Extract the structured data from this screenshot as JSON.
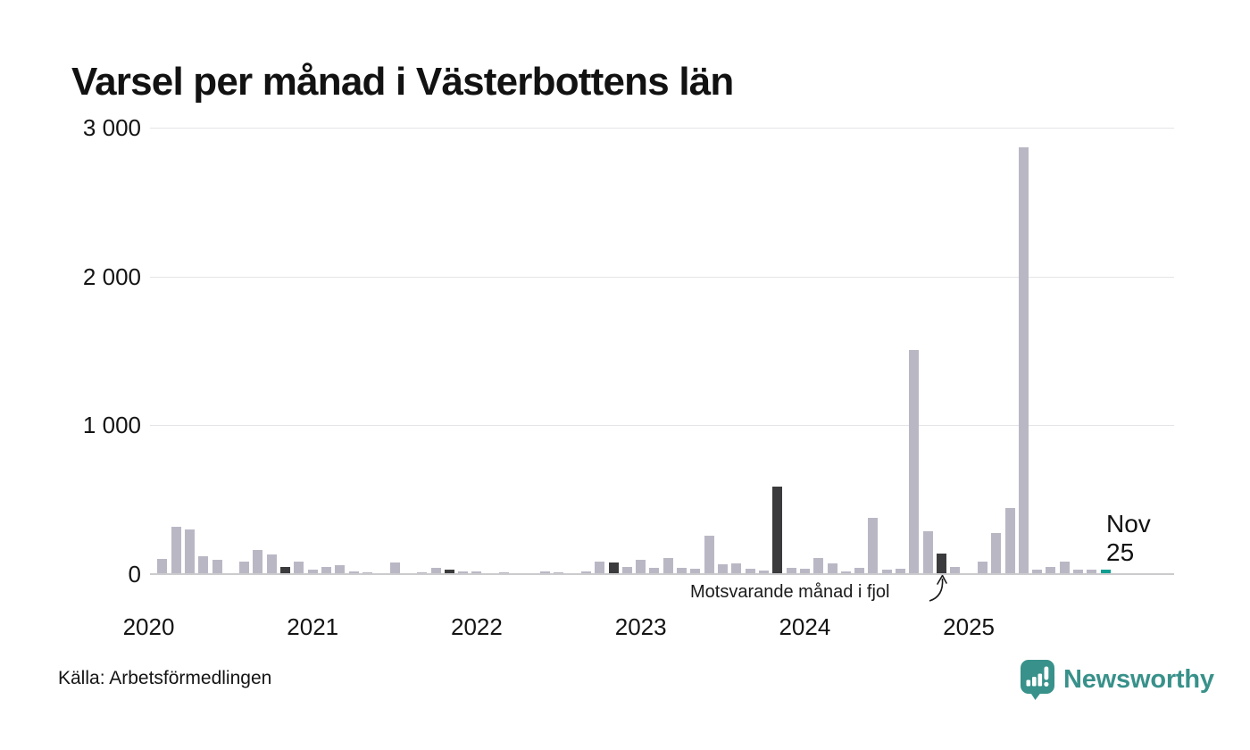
{
  "title": "Varsel per månad i Västerbottens län",
  "source": "Källa: Arbetsförmedlingen",
  "logo": {
    "text": "Newsworthy",
    "color": "#38918a"
  },
  "annotation": {
    "text": "Motsvarande månad i fjol"
  },
  "current_label": {
    "line1": "Nov",
    "line2": "25"
  },
  "colors": {
    "bar": "#bab7c5",
    "november": "#3b3b3d",
    "current": "#0d9e90",
    "grid": "#e5e4e8",
    "axis_line": "#cbcbcd",
    "text": "#121212",
    "logo_teal": "#38918a"
  },
  "chart_data": {
    "type": "bar",
    "title": "Varsel per månad i Västerbottens län",
    "xlabel": "",
    "ylabel": "",
    "ylim": [
      0,
      3000
    ],
    "grid": "horizontal",
    "legend": "none",
    "yticks": [
      {
        "v": 0,
        "label": "0"
      },
      {
        "v": 1000,
        "label": "1 000"
      },
      {
        "v": 2000,
        "label": "2 000"
      },
      {
        "v": 3000,
        "label": "3 000"
      }
    ],
    "years": [
      "2020",
      "2021",
      "2022",
      "2023",
      "2024",
      "2025"
    ],
    "highlight_legend": {
      "november_bars": "Motsvarande månad i fjol (dark bars, each November)",
      "current_bar": "Nov 25 (teal bar, latest month)"
    },
    "months": [
      {
        "m": "2020-01",
        "v": 0
      },
      {
        "m": "2020-02",
        "v": 95
      },
      {
        "m": "2020-03",
        "v": 315
      },
      {
        "m": "2020-04",
        "v": 293
      },
      {
        "m": "2020-05",
        "v": 115
      },
      {
        "m": "2020-06",
        "v": 90
      },
      {
        "m": "2020-07",
        "v": 0
      },
      {
        "m": "2020-08",
        "v": 80
      },
      {
        "m": "2020-09",
        "v": 158
      },
      {
        "m": "2020-10",
        "v": 128
      },
      {
        "m": "2020-11",
        "v": 44,
        "k": "nov"
      },
      {
        "m": "2020-12",
        "v": 78
      },
      {
        "m": "2021-01",
        "v": 24
      },
      {
        "m": "2021-02",
        "v": 42
      },
      {
        "m": "2021-03",
        "v": 55
      },
      {
        "m": "2021-04",
        "v": 12
      },
      {
        "m": "2021-05",
        "v": 6
      },
      {
        "m": "2021-06",
        "v": 0
      },
      {
        "m": "2021-07",
        "v": 72
      },
      {
        "m": "2021-08",
        "v": 0
      },
      {
        "m": "2021-09",
        "v": 8
      },
      {
        "m": "2021-10",
        "v": 36
      },
      {
        "m": "2021-11",
        "v": 26,
        "k": "nov"
      },
      {
        "m": "2021-12",
        "v": 10
      },
      {
        "m": "2022-01",
        "v": 12
      },
      {
        "m": "2022-02",
        "v": 0
      },
      {
        "m": "2022-03",
        "v": 8
      },
      {
        "m": "2022-04",
        "v": 0
      },
      {
        "m": "2022-05",
        "v": 0
      },
      {
        "m": "2022-06",
        "v": 10
      },
      {
        "m": "2022-07",
        "v": 6
      },
      {
        "m": "2022-08",
        "v": 0
      },
      {
        "m": "2022-09",
        "v": 10
      },
      {
        "m": "2022-10",
        "v": 78
      },
      {
        "m": "2022-11",
        "v": 70,
        "k": "nov"
      },
      {
        "m": "2022-12",
        "v": 44
      },
      {
        "m": "2023-01",
        "v": 90
      },
      {
        "m": "2023-02",
        "v": 36
      },
      {
        "m": "2023-03",
        "v": 100
      },
      {
        "m": "2023-04",
        "v": 34
      },
      {
        "m": "2023-05",
        "v": 30
      },
      {
        "m": "2023-06",
        "v": 255
      },
      {
        "m": "2023-07",
        "v": 62
      },
      {
        "m": "2023-08",
        "v": 64
      },
      {
        "m": "2023-09",
        "v": 28
      },
      {
        "m": "2023-10",
        "v": 20
      },
      {
        "m": "2023-11",
        "v": 580,
        "k": "nov"
      },
      {
        "m": "2023-12",
        "v": 38
      },
      {
        "m": "2024-01",
        "v": 28
      },
      {
        "m": "2024-02",
        "v": 104
      },
      {
        "m": "2024-03",
        "v": 64
      },
      {
        "m": "2024-04",
        "v": 12
      },
      {
        "m": "2024-05",
        "v": 38
      },
      {
        "m": "2024-06",
        "v": 370
      },
      {
        "m": "2024-07",
        "v": 22
      },
      {
        "m": "2024-08",
        "v": 32
      },
      {
        "m": "2024-09",
        "v": 1500
      },
      {
        "m": "2024-10",
        "v": 285
      },
      {
        "m": "2024-11",
        "v": 130,
        "k": "nov"
      },
      {
        "m": "2024-12",
        "v": 40
      },
      {
        "m": "2025-01",
        "v": 0
      },
      {
        "m": "2025-02",
        "v": 76
      },
      {
        "m": "2025-03",
        "v": 270
      },
      {
        "m": "2025-04",
        "v": 440
      },
      {
        "m": "2025-05",
        "v": 2860
      },
      {
        "m": "2025-06",
        "v": 24
      },
      {
        "m": "2025-07",
        "v": 44
      },
      {
        "m": "2025-08",
        "v": 76
      },
      {
        "m": "2025-09",
        "v": 22
      },
      {
        "m": "2025-10",
        "v": 26
      },
      {
        "m": "2025-11",
        "v": 25,
        "k": "current"
      }
    ]
  }
}
